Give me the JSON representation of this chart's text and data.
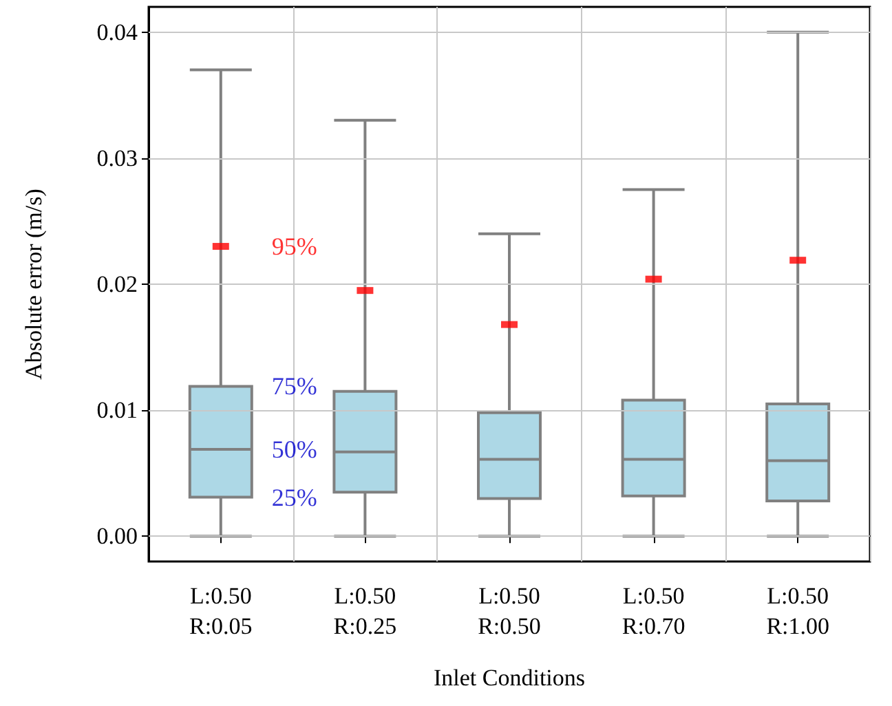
{
  "chart_data": {
    "type": "box",
    "xlabel": "Inlet Conditions",
    "ylabel": "Absolute error (m/s)",
    "categories": [
      "L:0.50\nR:0.05",
      "L:0.50\nR:0.25",
      "L:0.50\nR:0.50",
      "L:0.50\nR:0.70",
      "L:0.50\nR:1.00"
    ],
    "series": [
      {
        "color": "#add8e6",
        "boxes": [
          {
            "low": 0.0,
            "q1": 0.0031,
            "median": 0.0069,
            "q3": 0.0119,
            "high": 0.037
          },
          {
            "low": 0.0,
            "q1": 0.0035,
            "median": 0.0067,
            "q3": 0.0115,
            "high": 0.033
          },
          {
            "low": 0.0,
            "q1": 0.003,
            "median": 0.0061,
            "q3": 0.0098,
            "high": 0.024
          },
          {
            "low": 0.0,
            "q1": 0.0032,
            "median": 0.0061,
            "q3": 0.0108,
            "high": 0.0275
          },
          {
            "low": 0.0,
            "q1": 0.0028,
            "median": 0.006,
            "q3": 0.0105,
            "high": 0.04
          }
        ]
      },
      {
        "type": "scatter",
        "color": "#ff0000",
        "x": [
          "L:0.50\nR:0.05",
          "L:0.50\nR:0.25",
          "L:0.50\nR:0.50",
          "L:0.50\nR:0.70",
          "L:0.50\nR:1.00"
        ],
        "values": [
          0.023,
          0.0195,
          0.0168,
          0.0204,
          0.0219
        ]
      }
    ],
    "annotations": [
      {
        "text": "95%",
        "x": "L:0.50\nR:0.05",
        "y": 0.023
      },
      {
        "text": "75%",
        "x": "L:0.50\nR:0.05",
        "y": 0.0119
      },
      {
        "text": "50%",
        "x": "L:0.50\nR:0.05",
        "y": 0.0069
      },
      {
        "text": "25%",
        "x": "L:0.50\nR:0.05",
        "y": 0.0031
      }
    ],
    "ylim": [
      -0.002,
      0.042
    ],
    "yticks": [
      {
        "value": 0,
        "label": "0.00"
      },
      {
        "value": 0.01,
        "label": "0.01"
      },
      {
        "value": 0.02,
        "label": "0.02"
      },
      {
        "value": 0.03,
        "label": "0.03"
      },
      {
        "value": 0.04,
        "label": "0.04"
      }
    ],
    "grid": true
  }
}
